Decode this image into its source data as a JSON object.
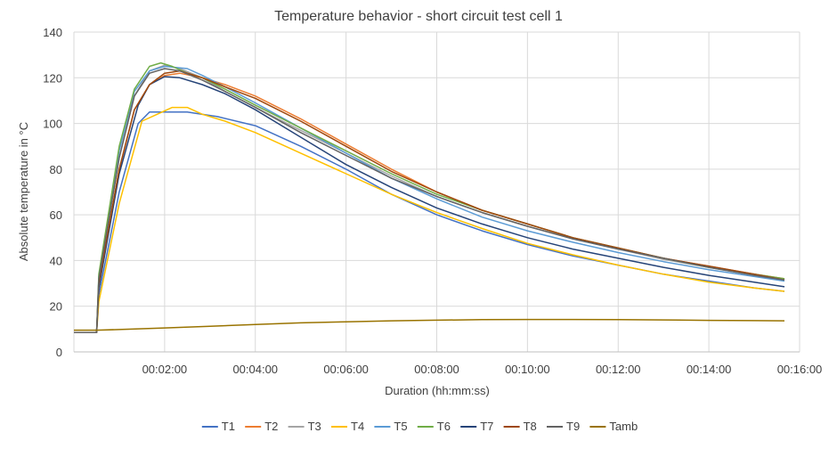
{
  "chart_data": {
    "type": "line",
    "title": "Temperature behavior - short circuit test cell 1",
    "xlabel": "Duration (hh:mm:ss)",
    "ylabel": "Absolute temperature in °C",
    "xlim": [
      0,
      960
    ],
    "ylim": [
      0,
      140
    ],
    "x_ticks": [
      {
        "value": 120,
        "label": "00:02:00"
      },
      {
        "value": 240,
        "label": "00:04:00"
      },
      {
        "value": 360,
        "label": "00:06:00"
      },
      {
        "value": 480,
        "label": "00:08:00"
      },
      {
        "value": 600,
        "label": "00:10:00"
      },
      {
        "value": 720,
        "label": "00:12:00"
      },
      {
        "value": 840,
        "label": "00:14:00"
      },
      {
        "value": 960,
        "label": "00:16:00"
      }
    ],
    "y_ticks": [
      0,
      20,
      40,
      60,
      80,
      100,
      120,
      140
    ],
    "grid": true,
    "legend_position": "bottom",
    "series": [
      {
        "name": "T1",
        "color": "#4472C4",
        "points": [
          [
            0,
            8.5
          ],
          [
            30,
            8.5
          ],
          [
            33,
            25
          ],
          [
            60,
            70
          ],
          [
            85,
            100
          ],
          [
            100,
            105
          ],
          [
            120,
            105
          ],
          [
            150,
            105
          ],
          [
            190,
            103
          ],
          [
            240,
            99
          ],
          [
            300,
            90
          ],
          [
            360,
            80
          ],
          [
            420,
            69
          ],
          [
            480,
            60
          ],
          [
            540,
            53
          ],
          [
            600,
            47
          ],
          [
            660,
            42
          ],
          [
            720,
            38
          ],
          [
            780,
            34
          ],
          [
            840,
            31
          ],
          [
            900,
            28
          ],
          [
            940,
            26.5
          ]
        ]
      },
      {
        "name": "T2",
        "color": "#ED7D31",
        "points": [
          [
            0,
            8.5
          ],
          [
            30,
            8.5
          ],
          [
            33,
            30
          ],
          [
            60,
            80
          ],
          [
            80,
            106
          ],
          [
            100,
            117
          ],
          [
            120,
            121
          ],
          [
            140,
            122
          ],
          [
            170,
            120
          ],
          [
            200,
            117
          ],
          [
            240,
            112
          ],
          [
            300,
            102
          ],
          [
            360,
            91
          ],
          [
            420,
            80
          ],
          [
            480,
            70
          ],
          [
            540,
            62
          ],
          [
            600,
            56
          ],
          [
            660,
            50
          ],
          [
            720,
            45.5
          ],
          [
            780,
            41
          ],
          [
            840,
            37.5
          ],
          [
            900,
            34
          ],
          [
            940,
            32
          ]
        ]
      },
      {
        "name": "T3",
        "color": "#A5A5A5",
        "points": [
          [
            0,
            8.5
          ],
          [
            30,
            8.5
          ],
          [
            33,
            32
          ],
          [
            60,
            85
          ],
          [
            80,
            112
          ],
          [
            100,
            123
          ],
          [
            120,
            125.5
          ],
          [
            140,
            124
          ],
          [
            170,
            120
          ],
          [
            200,
            114
          ],
          [
            240,
            107
          ],
          [
            300,
            97
          ],
          [
            360,
            87
          ],
          [
            420,
            77
          ],
          [
            480,
            68
          ],
          [
            540,
            61
          ],
          [
            600,
            55
          ],
          [
            660,
            49.5
          ],
          [
            720,
            45
          ],
          [
            780,
            40.5
          ],
          [
            840,
            37
          ],
          [
            900,
            33.5
          ],
          [
            940,
            31.5
          ]
        ]
      },
      {
        "name": "T4",
        "color": "#FFC000",
        "points": [
          [
            0,
            8.5
          ],
          [
            30,
            8.5
          ],
          [
            33,
            22
          ],
          [
            60,
            65
          ],
          [
            90,
            101
          ],
          [
            110,
            104
          ],
          [
            130,
            107
          ],
          [
            150,
            107
          ],
          [
            170,
            104
          ],
          [
            200,
            101
          ],
          [
            240,
            96
          ],
          [
            300,
            87
          ],
          [
            360,
            78
          ],
          [
            420,
            69
          ],
          [
            480,
            61
          ],
          [
            540,
            54
          ],
          [
            600,
            47.5
          ],
          [
            660,
            42.5
          ],
          [
            720,
            38
          ],
          [
            780,
            34
          ],
          [
            840,
            30.5
          ],
          [
            900,
            28
          ],
          [
            940,
            26.5
          ]
        ]
      },
      {
        "name": "T5",
        "color": "#5B9BD5",
        "points": [
          [
            0,
            8.5
          ],
          [
            30,
            8.5
          ],
          [
            33,
            33
          ],
          [
            60,
            88
          ],
          [
            80,
            114
          ],
          [
            100,
            123
          ],
          [
            120,
            125
          ],
          [
            150,
            124
          ],
          [
            170,
            121
          ],
          [
            200,
            116
          ],
          [
            240,
            109
          ],
          [
            300,
            98
          ],
          [
            360,
            87
          ],
          [
            420,
            76
          ],
          [
            480,
            67
          ],
          [
            540,
            59
          ],
          [
            600,
            53
          ],
          [
            660,
            48
          ],
          [
            720,
            43.5
          ],
          [
            780,
            39.5
          ],
          [
            840,
            36
          ],
          [
            900,
            33
          ],
          [
            940,
            31
          ]
        ]
      },
      {
        "name": "T6",
        "color": "#70AD47",
        "points": [
          [
            0,
            8.5
          ],
          [
            30,
            8.5
          ],
          [
            33,
            34
          ],
          [
            60,
            90
          ],
          [
            80,
            115
          ],
          [
            100,
            125
          ],
          [
            115,
            126.5
          ],
          [
            130,
            125
          ],
          [
            150,
            122
          ],
          [
            170,
            120
          ],
          [
            200,
            115
          ],
          [
            240,
            108
          ],
          [
            300,
            98
          ],
          [
            360,
            88
          ],
          [
            420,
            78
          ],
          [
            480,
            69
          ],
          [
            540,
            62
          ],
          [
            600,
            56
          ],
          [
            660,
            50
          ],
          [
            720,
            45.5
          ],
          [
            780,
            41
          ],
          [
            840,
            37
          ],
          [
            900,
            34
          ],
          [
            940,
            32
          ]
        ]
      },
      {
        "name": "T7",
        "color": "#264478",
        "points": [
          [
            0,
            8.5
          ],
          [
            30,
            8.5
          ],
          [
            33,
            28
          ],
          [
            60,
            78
          ],
          [
            85,
            108
          ],
          [
            100,
            117
          ],
          [
            120,
            120.5
          ],
          [
            140,
            120
          ],
          [
            170,
            117
          ],
          [
            200,
            113
          ],
          [
            240,
            106
          ],
          [
            300,
            94
          ],
          [
            360,
            82
          ],
          [
            420,
            72
          ],
          [
            480,
            63
          ],
          [
            540,
            56
          ],
          [
            600,
            50
          ],
          [
            660,
            45
          ],
          [
            720,
            41
          ],
          [
            780,
            37
          ],
          [
            840,
            33.5
          ],
          [
            900,
            30.5
          ],
          [
            940,
            28.5
          ]
        ]
      },
      {
        "name": "T8",
        "color": "#9E480E",
        "points": [
          [
            0,
            8.5
          ],
          [
            30,
            8.5
          ],
          [
            33,
            30
          ],
          [
            60,
            80
          ],
          [
            80,
            106
          ],
          [
            100,
            117
          ],
          [
            120,
            122
          ],
          [
            140,
            123
          ],
          [
            170,
            120
          ],
          [
            200,
            116
          ],
          [
            240,
            111
          ],
          [
            300,
            101
          ],
          [
            360,
            90
          ],
          [
            420,
            79
          ],
          [
            480,
            70
          ],
          [
            540,
            62
          ],
          [
            600,
            56
          ],
          [
            660,
            50
          ],
          [
            720,
            45.5
          ],
          [
            780,
            41
          ],
          [
            840,
            37.5
          ],
          [
            900,
            34
          ],
          [
            940,
            31.5
          ]
        ]
      },
      {
        "name": "T9",
        "color": "#636363",
        "points": [
          [
            0,
            8.5
          ],
          [
            30,
            8.5
          ],
          [
            33,
            32
          ],
          [
            60,
            85
          ],
          [
            80,
            112
          ],
          [
            100,
            122
          ],
          [
            120,
            124
          ],
          [
            140,
            123
          ],
          [
            170,
            119
          ],
          [
            200,
            114
          ],
          [
            240,
            107
          ],
          [
            300,
            96
          ],
          [
            360,
            86
          ],
          [
            420,
            76
          ],
          [
            480,
            68
          ],
          [
            540,
            61
          ],
          [
            600,
            55
          ],
          [
            660,
            49.5
          ],
          [
            720,
            45
          ],
          [
            780,
            41
          ],
          [
            840,
            37
          ],
          [
            900,
            33.5
          ],
          [
            940,
            31.5
          ]
        ]
      },
      {
        "name": "Tamb",
        "color": "#997300",
        "points": [
          [
            0,
            9.5
          ],
          [
            30,
            9.5
          ],
          [
            60,
            9.8
          ],
          [
            120,
            10.5
          ],
          [
            180,
            11.2
          ],
          [
            240,
            12
          ],
          [
            300,
            12.7
          ],
          [
            360,
            13.2
          ],
          [
            420,
            13.6
          ],
          [
            480,
            13.9
          ],
          [
            540,
            14.1
          ],
          [
            600,
            14.2
          ],
          [
            660,
            14.2
          ],
          [
            720,
            14.1
          ],
          [
            780,
            14
          ],
          [
            840,
            13.8
          ],
          [
            900,
            13.7
          ],
          [
            940,
            13.6
          ]
        ]
      }
    ]
  }
}
